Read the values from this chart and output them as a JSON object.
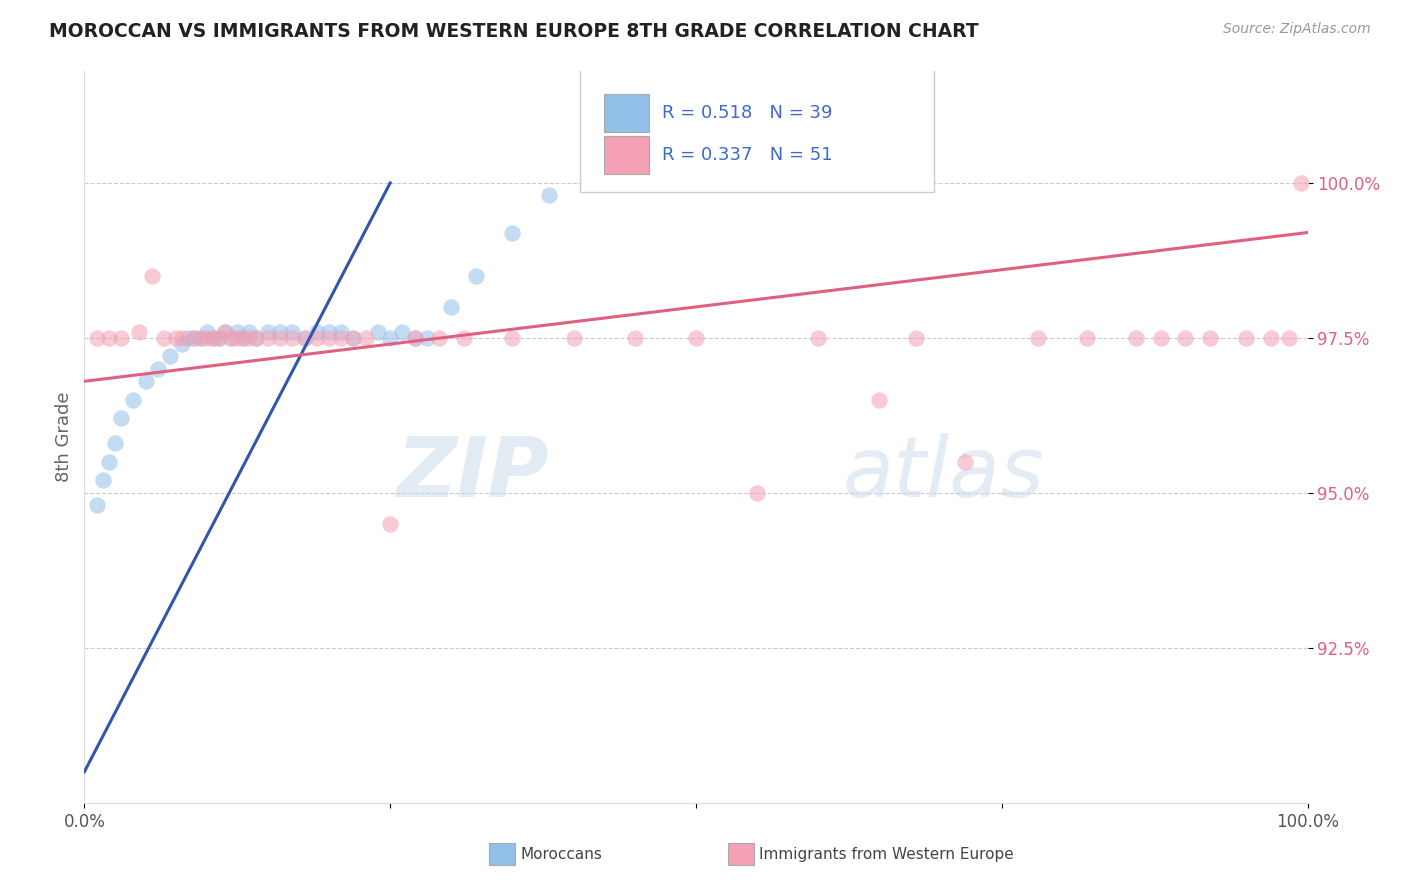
{
  "title": "MOROCCAN VS IMMIGRANTS FROM WESTERN EUROPE 8TH GRADE CORRELATION CHART",
  "source": "Source: ZipAtlas.com",
  "ylabel": "8th Grade",
  "y_tick_labels": [
    "92.5%",
    "95.0%",
    "97.5%",
    "100.0%"
  ],
  "y_tick_values": [
    92.5,
    95.0,
    97.5,
    100.0
  ],
  "xlim": [
    0,
    100
  ],
  "ylim": [
    90.0,
    101.8
  ],
  "blue_color": "#92C0E8",
  "pink_color": "#F4A0B5",
  "blue_line_color": "#3355AA",
  "pink_line_color": "#E06080",
  "legend_text_color": "#4169CC",
  "tick_color": "#E06080",
  "blue_scatter_x": [
    1.0,
    1.5,
    2.0,
    2.5,
    3.0,
    4.0,
    5.0,
    6.0,
    7.0,
    8.0,
    8.5,
    9.0,
    9.5,
    10.0,
    10.5,
    11.0,
    11.5,
    12.0,
    12.5,
    13.0,
    13.5,
    14.0,
    15.0,
    16.0,
    17.0,
    18.0,
    19.0,
    20.0,
    21.0,
    22.0,
    24.0,
    25.0,
    26.0,
    27.0,
    28.0,
    30.0,
    32.0,
    35.0,
    38.0
  ],
  "blue_scatter_y": [
    94.8,
    95.2,
    95.5,
    95.8,
    96.2,
    96.5,
    96.8,
    97.0,
    97.2,
    97.4,
    97.5,
    97.5,
    97.5,
    97.6,
    97.5,
    97.5,
    97.6,
    97.5,
    97.6,
    97.5,
    97.6,
    97.5,
    97.6,
    97.6,
    97.6,
    97.5,
    97.6,
    97.6,
    97.6,
    97.5,
    97.6,
    97.5,
    97.6,
    97.5,
    97.5,
    98.0,
    98.5,
    99.2,
    99.8
  ],
  "pink_scatter_x": [
    1.0,
    2.0,
    3.0,
    4.5,
    5.5,
    6.5,
    7.5,
    8.0,
    9.0,
    9.5,
    10.0,
    10.5,
    11.0,
    11.5,
    12.0,
    12.5,
    13.0,
    13.5,
    14.0,
    15.0,
    16.0,
    17.0,
    18.0,
    19.0,
    20.0,
    21.0,
    22.0,
    23.0,
    25.0,
    27.0,
    29.0,
    31.0,
    35.0,
    40.0,
    45.0,
    50.0,
    55.0,
    60.0,
    65.0,
    68.0,
    72.0,
    78.0,
    82.0,
    86.0,
    88.0,
    90.0,
    92.0,
    95.0,
    97.0,
    98.5,
    99.5
  ],
  "pink_scatter_y": [
    97.5,
    97.5,
    97.5,
    97.6,
    98.5,
    97.5,
    97.5,
    97.5,
    97.5,
    97.5,
    97.5,
    97.5,
    97.5,
    97.6,
    97.5,
    97.5,
    97.5,
    97.5,
    97.5,
    97.5,
    97.5,
    97.5,
    97.5,
    97.5,
    97.5,
    97.5,
    97.5,
    97.5,
    94.5,
    97.5,
    97.5,
    97.5,
    97.5,
    97.5,
    97.5,
    97.5,
    95.0,
    97.5,
    96.5,
    97.5,
    95.5,
    97.5,
    97.5,
    97.5,
    97.5,
    97.5,
    97.5,
    97.5,
    97.5,
    97.5,
    100.0
  ],
  "blue_line_x": [
    0,
    25
  ],
  "blue_line_y": [
    90.5,
    100.0
  ],
  "pink_line_x": [
    0,
    100
  ],
  "pink_line_y": [
    96.8,
    99.2
  ]
}
